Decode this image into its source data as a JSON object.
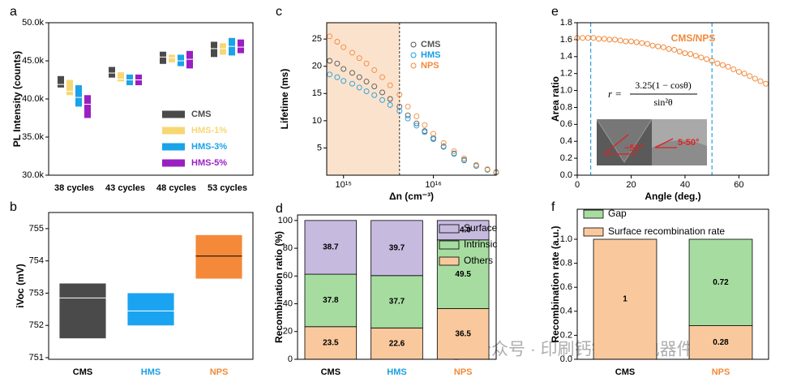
{
  "watermark": "公众号 · 印刷钙钛矿光电器件",
  "chart_data": [
    {
      "type": "box",
      "panel_label": "a",
      "ylabel": "PL Intensity (counts)",
      "categories": [
        "38 cycles",
        "43 cycles",
        "48 cycles",
        "53 cycles"
      ],
      "ylim": [
        30000,
        50000
      ],
      "yticks": [
        {
          "value": 30000,
          "label": "30.0k"
        },
        {
          "value": 35000,
          "label": "35.0k"
        },
        {
          "value": 40000,
          "label": "40.0k"
        },
        {
          "value": 45000,
          "label": "45.0k"
        },
        {
          "value": 50000,
          "label": "50.0k"
        }
      ],
      "median_color": "#ffffff",
      "series": [
        {
          "name": "CMS",
          "color": "#4a4a4a",
          "low": [
            41500,
            42800,
            44600,
            45500
          ],
          "high": [
            43000,
            44200,
            46200,
            47500
          ],
          "median": [
            41900,
            43400,
            45500,
            46600
          ]
        },
        {
          "name": "HMS-1%",
          "color": "#f7d774",
          "low": [
            40500,
            42300,
            44800,
            45800
          ],
          "high": [
            42500,
            43500,
            45800,
            47300
          ],
          "median": [
            41000,
            42600,
            45400,
            46600
          ]
        },
        {
          "name": "HMS-3%",
          "color": "#1aa3e8",
          "low": [
            39000,
            41800,
            44300,
            45700
          ],
          "high": [
            41800,
            43200,
            45800,
            48000
          ],
          "median": [
            40200,
            42500,
            45000,
            46900
          ]
        },
        {
          "name": "HMS-5%",
          "color": "#9a1fc2",
          "low": [
            37500,
            41800,
            44000,
            46000
          ],
          "high": [
            40500,
            43200,
            46300,
            47800
          ],
          "median": [
            39300,
            42500,
            45200,
            46800
          ]
        }
      ]
    },
    {
      "type": "box",
      "panel_label": "b",
      "ylabel": "iVoc (mV)",
      "categories": [
        "CMS",
        "HMS",
        "NPS"
      ],
      "category_colors": [
        "#000000",
        "#1a9fe0",
        "#f2893a"
      ],
      "ylim": [
        750.95,
        755.5
      ],
      "yticks": [
        751,
        752,
        753,
        754,
        755
      ],
      "colors": [
        "#4a4a4a",
        "#1aa3f0",
        "#f5893a"
      ],
      "median_colors": [
        "#ffffff",
        "#ffffff",
        "#000000"
      ],
      "low": [
        751.6,
        752.0,
        753.45
      ],
      "high": [
        753.3,
        753.0,
        754.8
      ],
      "median": [
        752.85,
        752.45,
        754.15
      ]
    },
    {
      "type": "scatter",
      "panel_label": "c",
      "ylabel": "Lifetime (ms)",
      "xlabel": "Δn (cm⁻³)",
      "xlog": true,
      "xlim": [
        650000000000000,
        50000000000000000
      ],
      "xticks": [
        {
          "value": 1000000000000000.0,
          "label": "10¹⁵"
        },
        {
          "value": 1e+16,
          "label": "10¹⁶"
        }
      ],
      "ylim": [
        0,
        28
      ],
      "yticks": [
        5,
        10,
        15,
        20,
        25
      ],
      "shaded_xrange": [
        650000000000000,
        4200000000000000
      ],
      "x": [
        700000000000000.0,
        850000000000000.0,
        1000000000000000.0,
        1250000000000000.0,
        1500000000000000.0,
        1800000000000000.0,
        2200000000000000.0,
        2700000000000000.0,
        3300000000000000.0,
        4200000000000000.0,
        5200000000000000.0,
        6500000000000000.0,
        8000000000000000.0,
        1e+16,
        1.3e+16,
        1.7e+16,
        2.2e+16,
        3e+16,
        4e+16,
        5e+16
      ],
      "series": [
        {
          "name": "CMS",
          "color": "#555555",
          "values": [
            21,
            20.5,
            19.5,
            18.8,
            18,
            17.2,
            16.3,
            15.2,
            14,
            12.6,
            11,
            9.5,
            8.1,
            6.8,
            5.3,
            4,
            2.8,
            1.7,
            1,
            0.5
          ]
        },
        {
          "name": "HMS",
          "color": "#1a9fe0",
          "values": [
            18.5,
            18,
            17.3,
            16.8,
            16.1,
            15.4,
            14.7,
            13.8,
            12.9,
            11.8,
            10.4,
            9.1,
            7.9,
            6.6,
            5.2,
            3.9,
            2.7,
            1.7,
            1,
            0.5
          ]
        },
        {
          "name": "NPS",
          "color": "#f2893a",
          "values": [
            25.5,
            24.5,
            23.5,
            22.5,
            21.5,
            20.5,
            19.3,
            18,
            16.5,
            14.8,
            12.6,
            10.8,
            9.2,
            7.6,
            5.9,
            4.4,
            3.1,
            1.9,
            1.1,
            0.6
          ]
        }
      ]
    },
    {
      "type": "stacked_bar",
      "panel_label": "d",
      "ylabel": "Recombination ratio (%)",
      "categories": [
        "CMS",
        "HMS",
        "NPS"
      ],
      "category_colors": [
        "#000000",
        "#1a9fe0",
        "#f2893a"
      ],
      "ylim": [
        0,
        104
      ],
      "yticks": [
        0,
        20,
        40,
        60,
        80,
        100
      ],
      "legend": "upper right",
      "series": [
        {
          "name": "Others",
          "color": "#f9c99d",
          "values": [
            23.5,
            22.6,
            36.5
          ]
        },
        {
          "name": "Intrinsic",
          "color": "#a6dca0",
          "values": [
            37.8,
            37.7,
            49.5
          ]
        },
        {
          "name": "Surface",
          "color": "#c7badf",
          "values": [
            38.7,
            39.7,
            14
          ],
          "value_labels": [
            "38.7",
            "39.7",
            "14.0"
          ]
        }
      ]
    },
    {
      "type": "line",
      "panel_label": "e",
      "ylabel": "Area ratio",
      "xlabel": "Angle (deg.)",
      "xlim": [
        0,
        71
      ],
      "xticks": [
        0,
        20,
        40,
        60
      ],
      "ylim": [
        0,
        1.8
      ],
      "yticks": [
        {
          "value": 0,
          "label": "0.0"
        },
        0.2,
        0.4,
        0.6,
        0.8,
        {
          "value": 1,
          "label": "1.0"
        },
        1.2,
        1.4,
        1.6,
        1.8
      ],
      "vlines": [
        5,
        50
      ],
      "annotation": "CMS/NPS",
      "formula": {
        "lhs": "r =",
        "numerator": "3.25(1 − cosθ)",
        "denominator": "sin²θ"
      },
      "inset_labels": [
        "~52°",
        "5-50°"
      ],
      "x": [
        0,
        2,
        4,
        6,
        8,
        10,
        12,
        14,
        16,
        18,
        20,
        22,
        24,
        26,
        28,
        30,
        32,
        34,
        36,
        38,
        40,
        42,
        44,
        46,
        48,
        50,
        52,
        54,
        56,
        58,
        60,
        62,
        64,
        66,
        68,
        70
      ],
      "series": [
        {
          "name": "CMS/NPS",
          "color": "#f2893a",
          "values": [
            1.62,
            1.62,
            1.62,
            1.62,
            1.61,
            1.61,
            1.6,
            1.6,
            1.59,
            1.58,
            1.58,
            1.57,
            1.56,
            1.55,
            1.53,
            1.52,
            1.51,
            1.49,
            1.48,
            1.46,
            1.44,
            1.43,
            1.41,
            1.39,
            1.37,
            1.35,
            1.32,
            1.3,
            1.28,
            1.25,
            1.22,
            1.2,
            1.17,
            1.14,
            1.11,
            1.08
          ]
        }
      ]
    },
    {
      "type": "stacked_bar",
      "panel_label": "f",
      "ylabel": "Recombination rate (a.u.)",
      "categories": [
        "CMS",
        "NPS"
      ],
      "category_colors": [
        "#000000",
        "#f2893a"
      ],
      "ylim": [
        0,
        1.25
      ],
      "yticks": [
        {
          "value": 0,
          "label": "0.0"
        },
        0.2,
        0.4,
        0.6,
        0.8,
        {
          "value": 1,
          "label": "1.0"
        }
      ],
      "legend": "upper left",
      "series": [
        {
          "name": "Surface recombination rate",
          "color": "#f9c99d",
          "values": [
            1,
            0.28
          ]
        },
        {
          "name": "Gap",
          "color": "#a6dca0",
          "values": [
            null,
            0.72
          ]
        }
      ]
    }
  ]
}
